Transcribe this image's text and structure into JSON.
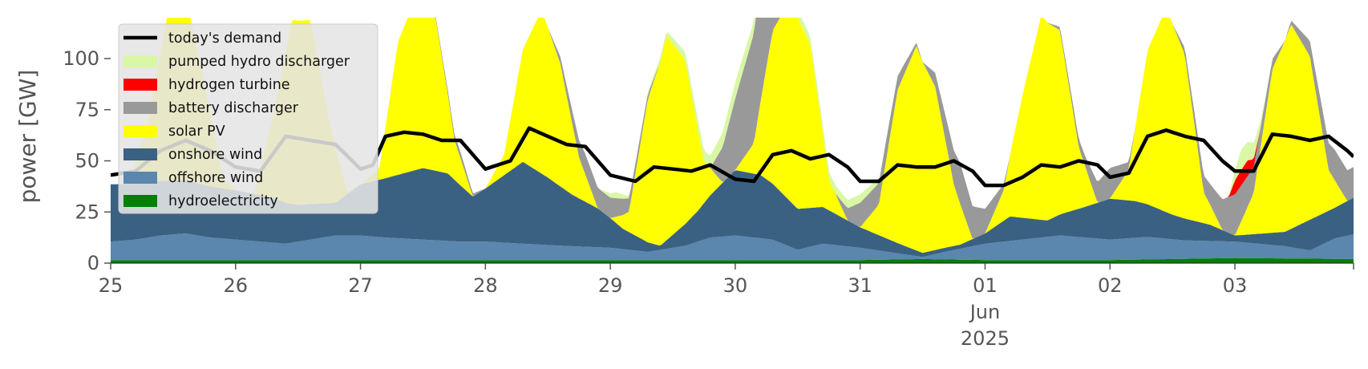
{
  "chart_data": {
    "type": "area",
    "title": "",
    "xlabel": "",
    "ylabel": "power [GW]",
    "ylim": [
      0,
      120
    ],
    "yticks": [
      0,
      25,
      50,
      75,
      100
    ],
    "xlim": [
      0,
      9.95
    ],
    "xticks": [
      {
        "x": 0,
        "labels": [
          "25"
        ]
      },
      {
        "x": 1,
        "labels": [
          "26"
        ]
      },
      {
        "x": 2,
        "labels": [
          "27"
        ]
      },
      {
        "x": 3,
        "labels": [
          "28"
        ]
      },
      {
        "x": 4,
        "labels": [
          "29"
        ]
      },
      {
        "x": 5,
        "labels": [
          "30"
        ]
      },
      {
        "x": 6,
        "labels": [
          "31"
        ]
      },
      {
        "x": 7,
        "labels": [
          "01",
          "Jun",
          "2025"
        ]
      },
      {
        "x": 8,
        "labels": [
          "02"
        ]
      },
      {
        "x": 9,
        "labels": [
          "03"
        ]
      }
    ],
    "x_unit": "days since 25 May 2025",
    "grid": false,
    "legend_position": "top-left",
    "stack_order": [
      "hydroelectricity",
      "offshore wind",
      "onshore wind",
      "solar PV",
      "battery discharger",
      "hydrogen turbine",
      "pumped hydro discharger"
    ],
    "series": [
      {
        "name": "hydroelectricity",
        "color": "#008000",
        "x": [
          0,
          1,
          2,
          3,
          4,
          5,
          6,
          6.5,
          7,
          8,
          9,
          9.95
        ],
        "values": [
          1.5,
          1.5,
          1.5,
          1.5,
          1.5,
          1.5,
          1.5,
          2.0,
          1.5,
          1.5,
          2.5,
          2.0
        ]
      },
      {
        "name": "offshore wind",
        "color": "#5b86ad",
        "x": [
          0,
          0.2,
          0.4,
          0.6,
          0.8,
          1,
          1.2,
          1.4,
          1.6,
          1.8,
          2,
          2.2,
          2.5,
          2.8,
          3,
          3.3,
          3.6,
          4,
          4.3,
          4.6,
          4.8,
          5,
          5.3,
          5.5,
          5.7,
          6,
          6.3,
          6.5,
          6.7,
          7,
          7.3,
          7.6,
          8,
          8.3,
          8.6,
          9,
          9.2,
          9.4,
          9.6,
          9.8,
          9.95
        ],
        "values": [
          9,
          10,
          12,
          13,
          11,
          10,
          9,
          8,
          10,
          12,
          12,
          11,
          10,
          9,
          9,
          8,
          7,
          6,
          4,
          7,
          11,
          12,
          10,
          5,
          8,
          6,
          3,
          1,
          4,
          8,
          10,
          12,
          10,
          11,
          9,
          8,
          7,
          6,
          4,
          10,
          12
        ]
      },
      {
        "name": "onshore wind",
        "color": "#3b6182",
        "x": [
          0,
          0.3,
          0.6,
          1,
          1.3,
          1.5,
          1.8,
          2,
          2.3,
          2.5,
          2.7,
          2.9,
          3,
          3.3,
          3.5,
          3.7,
          3.9,
          4.1,
          4.4,
          4.7,
          5,
          5.2,
          5.5,
          5.7,
          6,
          6.3,
          6.5,
          6.8,
          7,
          7.2,
          7.5,
          7.8,
          8,
          8.2,
          8.5,
          8.8,
          9,
          9.2,
          9.4,
          9.6,
          9.8,
          9.95
        ],
        "values": [
          28,
          27,
          26,
          24,
          22,
          18,
          16,
          25,
          31,
          35,
          33,
          22,
          26,
          40,
          33,
          25,
          19,
          10,
          2,
          15,
          32,
          31,
          20,
          18,
          10,
          5,
          2,
          2,
          5,
          12,
          8,
          15,
          20,
          18,
          12,
          8,
          3,
          5,
          7,
          15,
          15,
          18
        ]
      },
      {
        "name": "solar PV",
        "color": "#ffff00",
        "x": [
          0,
          0.15,
          0.3,
          0.45,
          0.6,
          0.75,
          0.9,
          1,
          1.15,
          1.3,
          1.45,
          1.6,
          1.75,
          1.9,
          2,
          2.15,
          2.3,
          2.45,
          2.6,
          2.75,
          2.9,
          3,
          3.15,
          3.3,
          3.45,
          3.6,
          3.75,
          3.9,
          4,
          4.15,
          4.3,
          4.45,
          4.6,
          4.75,
          4.9,
          5,
          5.15,
          5.3,
          5.45,
          5.6,
          5.75,
          5.9,
          6,
          6.15,
          6.3,
          6.45,
          6.6,
          6.75,
          6.9,
          7,
          7.15,
          7.3,
          7.45,
          7.6,
          7.75,
          7.9,
          8,
          8.15,
          8.3,
          8.45,
          8.6,
          8.75,
          8.9,
          9,
          9.15,
          9.3,
          9.45,
          9.6,
          9.75,
          9.9,
          9.95
        ],
        "values": [
          0,
          0,
          30,
          80,
          90,
          50,
          5,
          0,
          0,
          40,
          90,
          90,
          40,
          0,
          0,
          5,
          65,
          85,
          75,
          20,
          0,
          0,
          10,
          55,
          80,
          60,
          20,
          0,
          0,
          10,
          70,
          100,
          80,
          20,
          0,
          0,
          15,
          75,
          100,
          80,
          15,
          0,
          0,
          15,
          75,
          100,
          80,
          30,
          0,
          0,
          15,
          60,
          100,
          90,
          30,
          0,
          0,
          15,
          75,
          100,
          80,
          15,
          0,
          0,
          20,
          80,
          100,
          80,
          20,
          0,
          0
        ]
      },
      {
        "name": "battery discharger",
        "color": "#999999",
        "x": [
          0,
          0.5,
          0.9,
          1,
          1.2,
          1.3,
          1.5,
          1.9,
          2,
          2.5,
          2.8,
          3,
          3.5,
          3.8,
          4,
          4.1,
          4.2,
          4.4,
          4.8,
          5,
          5.2,
          5.3,
          5.5,
          5.8,
          6,
          6.2,
          6.5,
          6.8,
          7,
          7.2,
          7.5,
          7.8,
          8,
          8.2,
          8.5,
          8.8,
          9,
          9.1,
          9.2,
          9.4,
          9.8,
          9.95
        ],
        "values": [
          0,
          0,
          0,
          0,
          0,
          0,
          0,
          0,
          0,
          0,
          3,
          0,
          0,
          10,
          10,
          8,
          5,
          0,
          0,
          35,
          60,
          40,
          0,
          0,
          12,
          10,
          0,
          20,
          12,
          0,
          0,
          5,
          15,
          0,
          0,
          10,
          20,
          15,
          10,
          0,
          15,
          15
        ]
      },
      {
        "name": "hydrogen turbine",
        "color": "#ff0000",
        "x": [
          0,
          8.95,
          9,
          9.1,
          9.2,
          9.95
        ],
        "values": [
          0,
          0,
          7,
          8,
          0,
          0
        ]
      },
      {
        "name": "pumped hydro discharger",
        "color": "#d9f7a5",
        "x": [
          0,
          3.9,
          4.05,
          4.2,
          5,
          5.15,
          5.3,
          6,
          6.1,
          6.2,
          8.95,
          9.05,
          9.15,
          9.25,
          9.95
        ],
        "values": [
          0,
          0,
          3,
          0,
          8,
          6,
          4,
          4,
          3,
          0,
          0,
          10,
          8,
          0,
          0
        ]
      },
      {
        "name": "today's demand",
        "type": "line",
        "color": "#000000",
        "x": [
          0,
          0.2,
          0.4,
          0.6,
          0.8,
          1,
          1.2,
          1.4,
          1.6,
          1.8,
          2,
          2.1,
          2.2,
          2.35,
          2.5,
          2.65,
          2.8,
          3,
          3.2,
          3.35,
          3.5,
          3.65,
          3.8,
          4,
          4.2,
          4.35,
          4.5,
          4.65,
          4.8,
          5,
          5.15,
          5.3,
          5.45,
          5.6,
          5.75,
          5.9,
          6,
          6.15,
          6.3,
          6.45,
          6.6,
          6.75,
          6.9,
          7,
          7.15,
          7.3,
          7.45,
          7.6,
          7.75,
          7.9,
          8,
          8.15,
          8.3,
          8.45,
          8.6,
          8.75,
          8.9,
          9,
          9.15,
          9.3,
          9.45,
          9.6,
          9.75,
          9.9,
          9.95
        ],
        "values": [
          43,
          45,
          55,
          60,
          55,
          47,
          45,
          62,
          60,
          58,
          46,
          48,
          62,
          64,
          63,
          60,
          60,
          46,
          50,
          66,
          62,
          58,
          57,
          43,
          40,
          47,
          46,
          45,
          48,
          41,
          40,
          53,
          55,
          51,
          53,
          47,
          40,
          40,
          48,
          47,
          47,
          50,
          45,
          38,
          38,
          42,
          48,
          47,
          50,
          48,
          42,
          44,
          62,
          65,
          62,
          60,
          50,
          45,
          45,
          63,
          62,
          60,
          62,
          55,
          52
        ]
      }
    ]
  }
}
